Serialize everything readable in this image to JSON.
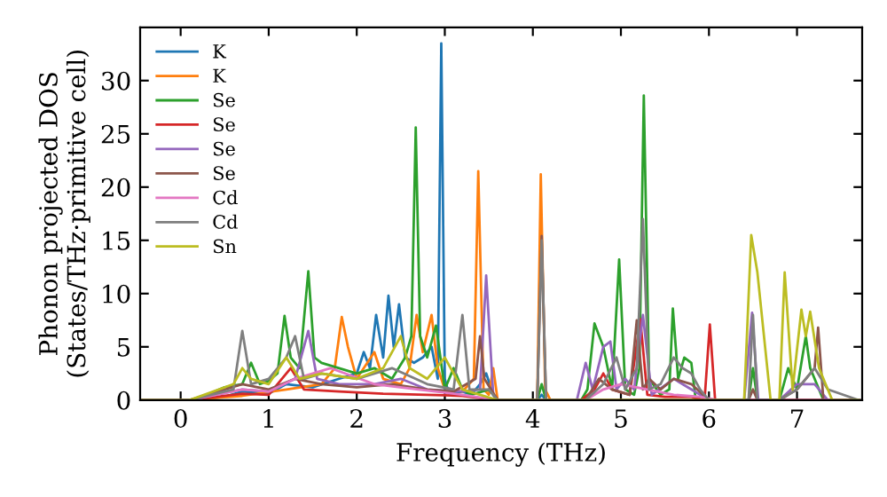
{
  "chart_data": {
    "type": "line",
    "xlabel": "Frequency (THz)",
    "ylabel": "Phonon projected DOS\n(States/THz·primitive cell)",
    "xlim": [
      -0.46,
      7.74
    ],
    "ylim": [
      0,
      35
    ],
    "xticks": [
      0,
      1,
      2,
      3,
      4,
      5,
      6,
      7
    ],
    "yticks": [
      0,
      5,
      10,
      15,
      20,
      25,
      30
    ],
    "legend": "top left",
    "grid": false,
    "series": [
      {
        "name": "K",
        "color": "#1f77b4",
        "x": [
          -0.45,
          0.1,
          0.5,
          0.7,
          1.0,
          1.2,
          1.5,
          1.8,
          2.0,
          2.08,
          2.15,
          2.22,
          2.3,
          2.36,
          2.42,
          2.48,
          2.55,
          2.65,
          2.75,
          2.85,
          2.92,
          2.96,
          3.0,
          3.05,
          3.2,
          3.3,
          3.4,
          3.47,
          3.55,
          3.6,
          4.05,
          4.1,
          4.15,
          7.7
        ],
        "values": [
          0,
          0,
          0.3,
          0.8,
          0.6,
          1.5,
          1.2,
          2,
          2.5,
          4.5,
          3,
          8,
          4,
          9.8,
          5,
          9,
          4,
          3.5,
          4,
          5,
          2,
          33.5,
          2,
          0.5,
          0.8,
          0.5,
          1.5,
          2.5,
          0.5,
          0,
          0,
          0.5,
          0,
          0
        ]
      },
      {
        "name": "K",
        "color": "#ff7f0e",
        "x": [
          -0.45,
          0.1,
          0.7,
          1.2,
          1.6,
          1.75,
          1.83,
          1.9,
          2.0,
          2.2,
          2.3,
          2.5,
          2.6,
          2.68,
          2.75,
          2.85,
          2.92,
          3.0,
          3.2,
          3.33,
          3.38,
          3.44,
          3.5,
          3.55,
          3.6,
          4.05,
          4.09,
          4.14,
          4.2,
          7.7
        ],
        "values": [
          0,
          0,
          0.4,
          1,
          1.5,
          3,
          7.8,
          5,
          2,
          4.5,
          2,
          1.5,
          3,
          8,
          4.5,
          8,
          3,
          1,
          0.8,
          2,
          21.5,
          1,
          0.5,
          3,
          0,
          0,
          21.2,
          1,
          0,
          0
        ]
      },
      {
        "name": "Se",
        "color": "#2ca02c",
        "x": [
          0.3,
          0.5,
          0.7,
          0.8,
          0.9,
          1.0,
          1.1,
          1.18,
          1.25,
          1.35,
          1.45,
          1.52,
          1.6,
          1.8,
          2.0,
          2.2,
          2.4,
          2.55,
          2.62,
          2.67,
          2.72,
          2.8,
          2.9,
          3.0,
          3.1,
          3.2,
          3.3,
          3.5,
          3.6,
          4.05,
          4.1,
          4.15,
          4.55,
          4.62,
          4.7,
          4.8,
          4.9,
          4.98,
          5.05,
          5.15,
          5.21,
          5.26,
          5.32,
          5.45,
          5.55,
          5.59,
          5.65,
          5.72,
          5.8,
          5.85,
          6.0,
          6.45,
          6.5,
          6.55,
          6.8,
          6.9,
          7.0,
          7.1,
          7.15,
          7.3,
          7.7
        ],
        "values": [
          0.5,
          1.2,
          1.5,
          3.5,
          1.5,
          1.8,
          2.5,
          7.9,
          4,
          3,
          12.1,
          4,
          3.5,
          3,
          2.5,
          3,
          2,
          4,
          6,
          25.6,
          6,
          4,
          7,
          1,
          3,
          1,
          0.5,
          1,
          0,
          0,
          1.5,
          0,
          0,
          1,
          7.2,
          5,
          1,
          13.2,
          1,
          0.5,
          3,
          28.6,
          2,
          0.5,
          1,
          8.6,
          2,
          4,
          3.5,
          0,
          0,
          0,
          3,
          0,
          0,
          3,
          1,
          6,
          3,
          0,
          0
        ]
      },
      {
        "name": "Se",
        "color": "#d62728",
        "x": [
          -0.45,
          0.1,
          0.7,
          1.0,
          1.25,
          1.4,
          1.8,
          2.3,
          2.8,
          3.2,
          3.6,
          4.55,
          4.7,
          4.8,
          4.9,
          5.1,
          5.22,
          5.3,
          5.5,
          5.8,
          5.95,
          6.01,
          6.07,
          7.7
        ],
        "values": [
          0,
          0,
          0.6,
          0.5,
          3,
          1,
          0.8,
          0.6,
          0.5,
          0.4,
          0,
          0,
          1,
          2.5,
          1,
          0.5,
          7.6,
          0.5,
          0.3,
          0.3,
          0,
          7.1,
          0,
          0
        ]
      },
      {
        "name": "Se",
        "color": "#9467bd",
        "x": [
          -0.45,
          0.1,
          0.7,
          1.0,
          1.3,
          1.45,
          1.55,
          1.8,
          2.2,
          2.5,
          2.8,
          3.2,
          3.4,
          3.47,
          3.55,
          3.6,
          4.5,
          4.6,
          4.68,
          4.8,
          4.88,
          4.95,
          5.05,
          5.15,
          5.25,
          5.35,
          5.6,
          5.8,
          6.0,
          6.4,
          6.49,
          6.56,
          6.8,
          7.0,
          7.2,
          7.35,
          7.7
        ],
        "values": [
          0,
          0,
          1,
          0.8,
          2,
          6.5,
          2,
          1.5,
          1.5,
          2,
          1,
          0.8,
          1,
          11.7,
          0.5,
          0,
          0,
          3.5,
          1,
          5,
          5.5,
          1,
          2,
          1,
          8,
          0.5,
          2,
          1,
          0,
          0,
          8.2,
          0,
          0,
          1.5,
          1.5,
          0,
          0
        ]
      },
      {
        "name": "Se",
        "color": "#8c564b",
        "x": [
          -0.45,
          0.1,
          0.7,
          1.0,
          1.3,
          1.6,
          2.0,
          2.4,
          2.8,
          3.1,
          3.35,
          3.4,
          3.45,
          3.6,
          4.05,
          4.1,
          4.15,
          4.6,
          4.75,
          4.9,
          5.1,
          5.18,
          5.25,
          5.32,
          5.45,
          5.6,
          5.8,
          6.0,
          6.45,
          6.5,
          6.55,
          6.8,
          7.0,
          7.2,
          7.24,
          7.3,
          7.7
        ],
        "values": [
          0,
          0,
          1.5,
          1,
          2,
          1.5,
          1.2,
          1.5,
          1,
          0.8,
          2,
          6,
          2,
          0,
          0,
          15.4,
          0,
          0,
          2,
          1,
          0.5,
          7.5,
          1,
          2,
          1,
          2,
          1.5,
          0,
          0,
          1,
          0,
          0,
          1,
          3,
          6.8,
          0,
          0
        ]
      },
      {
        "name": "Cd",
        "color": "#e377c2",
        "x": [
          -0.45,
          0.1,
          0.7,
          1.0,
          1.3,
          1.7,
          2.2,
          2.7,
          3.2,
          3.6,
          4.6,
          4.8,
          5.0,
          5.3,
          5.6,
          5.9,
          6.1,
          7.7
        ],
        "values": [
          0,
          0,
          1,
          0.8,
          2,
          3,
          1.5,
          1,
          0.5,
          0,
          0,
          1,
          1.5,
          1,
          0.5,
          0.3,
          0,
          0
        ]
      },
      {
        "name": "Cd",
        "color": "#7f7f7f",
        "x": [
          -0.45,
          0.1,
          0.6,
          0.7,
          0.8,
          1.0,
          1.2,
          1.3,
          1.4,
          1.6,
          2.0,
          2.4,
          2.8,
          3.1,
          3.2,
          3.28,
          3.5,
          3.6,
          4.05,
          4.1,
          4.15,
          4.6,
          4.8,
          4.95,
          5.05,
          5.18,
          5.25,
          5.32,
          5.45,
          5.6,
          5.7,
          5.8,
          5.9,
          6.0,
          6.45,
          6.5,
          6.55,
          6.8,
          7.0,
          7.2,
          7.35,
          7.7
        ],
        "values": [
          0,
          0,
          1,
          6.5,
          1.5,
          2,
          4,
          6,
          2,
          2.5,
          2,
          3,
          1.5,
          1,
          8,
          1,
          1,
          0,
          0,
          15,
          0,
          0,
          1.5,
          4,
          1,
          3,
          17,
          1,
          1.5,
          4,
          3,
          2.5,
          1,
          0,
          0,
          8,
          0,
          0,
          1,
          3,
          1,
          0
        ]
      },
      {
        "name": "Sn",
        "color": "#bcbd22",
        "x": [
          -0.45,
          0.1,
          0.6,
          0.7,
          0.8,
          1.0,
          1.2,
          1.35,
          1.6,
          2.0,
          2.3,
          2.5,
          2.6,
          2.8,
          3.0,
          3.2,
          3.6,
          6.4,
          6.48,
          6.55,
          6.7,
          6.8,
          6.86,
          6.95,
          7.05,
          7.1,
          7.15,
          7.25,
          7.4,
          7.7
        ],
        "values": [
          0,
          0,
          1.5,
          3,
          2,
          1.5,
          4,
          2,
          2.5,
          2,
          3,
          6,
          3,
          2,
          4,
          1,
          0,
          0,
          15.5,
          12,
          0,
          0,
          12,
          1,
          8.5,
          6,
          8.3,
          3,
          0,
          0
        ]
      }
    ]
  }
}
